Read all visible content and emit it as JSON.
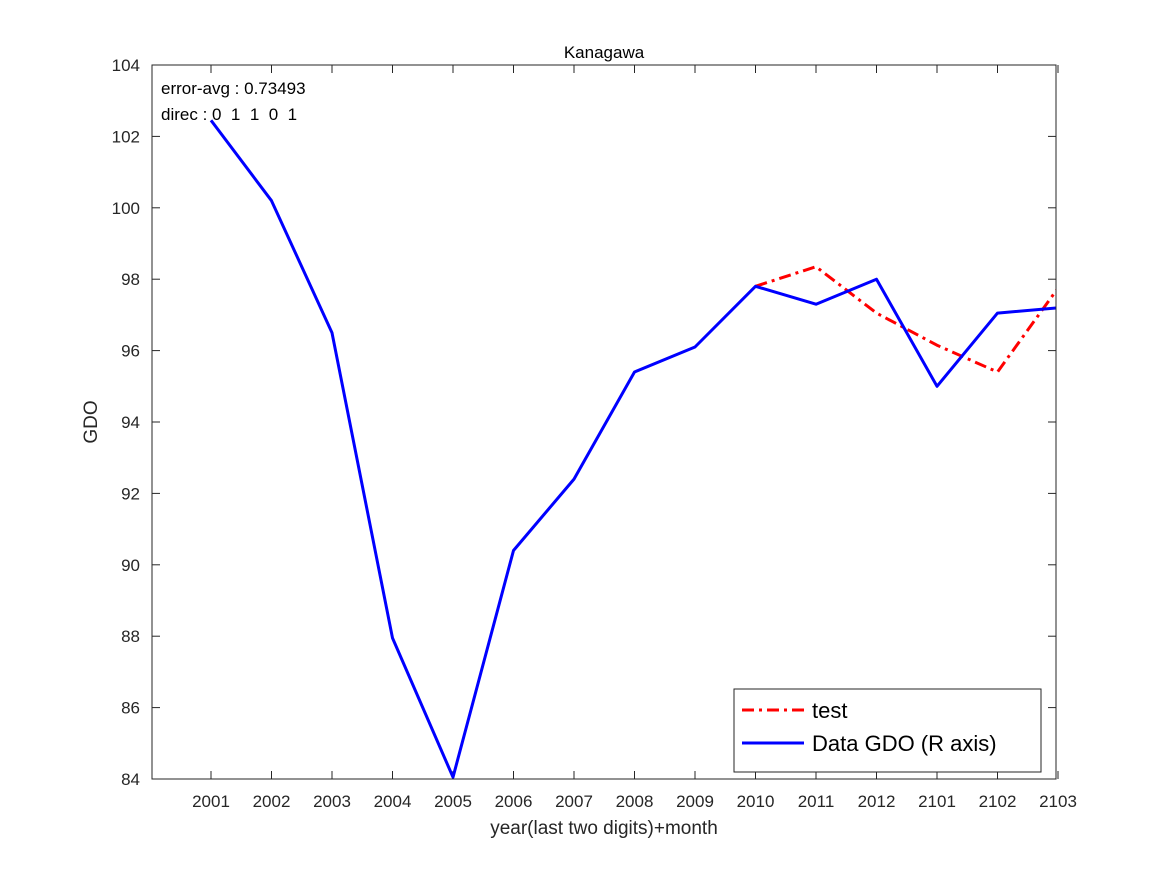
{
  "chart_data": {
    "type": "line",
    "title": "Kanagawa",
    "xlabel": "year(last two digits)+month",
    "ylabel": "GDO",
    "categories": [
      "2001",
      "2002",
      "2003",
      "2004",
      "2005",
      "2006",
      "2007",
      "2008",
      "2009",
      "2010",
      "2011",
      "2012",
      "2101",
      "2102",
      "2103"
    ],
    "ylim": [
      84,
      104
    ],
    "yticks": [
      84,
      86,
      88,
      90,
      92,
      94,
      96,
      98,
      100,
      102,
      104
    ],
    "grid": false,
    "legend_position": "bottom-right",
    "annotations": [
      "error-avg : 0.73493",
      "direc : 0  1  1  0  1"
    ],
    "series": [
      {
        "name": "test",
        "color": "#ff0000",
        "style": "dash-dot",
        "values": [
          null,
          null,
          null,
          null,
          null,
          null,
          null,
          null,
          null,
          97.8,
          98.35,
          97.05,
          96.15,
          95.4,
          97.75
        ]
      },
      {
        "name": "Data GDO (R axis)",
        "color": "#0000ff",
        "style": "solid",
        "values": [
          102.45,
          100.2,
          96.5,
          87.95,
          84.05,
          90.4,
          92.4,
          95.4,
          96.1,
          97.8,
          97.3,
          98.0,
          95.0,
          97.05,
          97.2
        ]
      }
    ]
  }
}
